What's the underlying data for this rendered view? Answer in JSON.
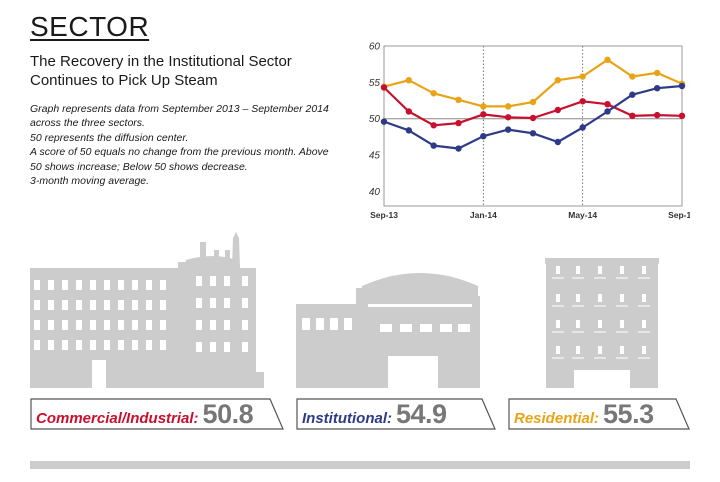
{
  "title": "SECTOR",
  "subtitle": [
    "The Recovery in the Institutional Sector",
    "Continues to Pick Up Steam"
  ],
  "description": [
    "Graph represents data from September 2013 – September 2014",
    "across the three sectors.",
    "50 represents the diffusion center.",
    "A score of 50 equals no change from the previous month. Above",
    "50 shows increase; Below 50 shows decrease.",
    "3-month moving average."
  ],
  "colors": {
    "commercial": "#c8102e",
    "institutional": "#2e3a87",
    "residential": "#e8a317",
    "building": "#cccccc"
  },
  "chart_data": {
    "type": "line",
    "x": [
      "Sep-13",
      "Oct-13",
      "Nov-13",
      "Dec-13",
      "Jan-14",
      "Feb-14",
      "Mar-14",
      "Apr-14",
      "May-14",
      "Jun-14",
      "Jul-14",
      "Aug-14",
      "Sep-14"
    ],
    "x_tick_labels": [
      "Sep-13",
      "Jan-14",
      "May-14",
      "Sep-14"
    ],
    "y_ticks": [
      40,
      45,
      50,
      55,
      60
    ],
    "ylim": [
      38,
      60
    ],
    "grid": "vertical dotted at Jan-14, May-14; horizontal solid at 50",
    "series": [
      {
        "key": "residential",
        "values": [
          54.4,
          55.3,
          53.5,
          52.6,
          51.7,
          51.7,
          52.3,
          55.3,
          55.8,
          58.1,
          55.8,
          56.3,
          54.8
        ]
      },
      {
        "key": "commercial",
        "values": [
          54.3,
          51.0,
          49.1,
          49.4,
          50.6,
          50.2,
          50.1,
          51.2,
          52.4,
          52.0,
          50.4,
          50.5,
          50.4
        ]
      },
      {
        "key": "institutional",
        "values": [
          49.6,
          48.4,
          46.3,
          45.9,
          47.6,
          48.5,
          48.0,
          46.8,
          48.8,
          51.0,
          53.3,
          54.2,
          54.5
        ]
      }
    ]
  },
  "labels": {
    "commercial": {
      "name": "Commercial/Industrial:",
      "value": "50.8"
    },
    "institutional": {
      "name": "Institutional:",
      "value": "54.9"
    },
    "residential": {
      "name": "Residential:",
      "value": "55.3"
    }
  }
}
